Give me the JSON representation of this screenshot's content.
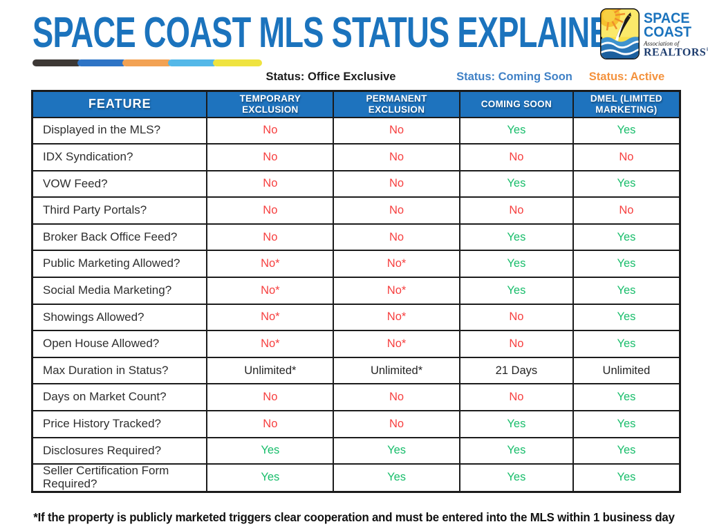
{
  "header": {
    "title": "SPACE COAST MLS STATUS EXPLAINER",
    "logo": {
      "word1": "SPACE",
      "word2": "COAST",
      "tagline": "Association of",
      "word3": "REALTORS",
      "reg_mark": "®",
      "badge_icon": "sun-rocket-waves-icon"
    }
  },
  "divider_colors": [
    "#3d3835",
    "#2e74c5",
    "#f2a254",
    "#54b8e8",
    "#efe340"
  ],
  "status_labels": [
    {
      "text": "Status: Office Exclusive",
      "color": "#1c1c1c"
    },
    {
      "text": "Status: Coming Soon",
      "color": "#4081c6"
    },
    {
      "text": "Status: Active",
      "color": "#f4923d"
    }
  ],
  "table": {
    "columns": [
      "FEATURE",
      "TEMPORARY EXCLUSION",
      "PERMANENT EXCLUSION",
      "COMING SOON",
      "DMEL (LIMITED MARKETING)"
    ],
    "rows": [
      {
        "feature": "Displayed in the MLS?",
        "values": [
          "No",
          "No",
          "Yes",
          "Yes"
        ]
      },
      {
        "feature": "IDX Syndication?",
        "values": [
          "No",
          "No",
          "No",
          "No"
        ]
      },
      {
        "feature": "VOW Feed?",
        "values": [
          "No",
          "No",
          "Yes",
          "Yes"
        ]
      },
      {
        "feature": "Third Party Portals?",
        "values": [
          "No",
          "No",
          "No",
          "No"
        ]
      },
      {
        "feature": "Broker Back Office Feed?",
        "values": [
          "No",
          "No",
          "Yes",
          "Yes"
        ]
      },
      {
        "feature": "Public Marketing Allowed?",
        "values": [
          "No*",
          "No*",
          "Yes",
          "Yes"
        ]
      },
      {
        "feature": "Social Media Marketing?",
        "values": [
          "No*",
          "No*",
          "Yes",
          "Yes"
        ]
      },
      {
        "feature": "Showings Allowed?",
        "values": [
          "No*",
          "No*",
          "No",
          "Yes"
        ]
      },
      {
        "feature": "Open House Allowed?",
        "values": [
          "No*",
          "No*",
          "No",
          "Yes"
        ]
      },
      {
        "feature": "Max Duration in Status?",
        "values": [
          "Unlimited*",
          "Unlimited*",
          "21 Days",
          "Unlimited"
        ]
      },
      {
        "feature": "Days on Market Count?",
        "values": [
          "No",
          "No",
          "No",
          "Yes"
        ]
      },
      {
        "feature": "Price History Tracked?",
        "values": [
          "No",
          "No",
          "Yes",
          "Yes"
        ]
      },
      {
        "feature": "Disclosures Required?",
        "values": [
          "Yes",
          "Yes",
          "Yes",
          "Yes"
        ]
      },
      {
        "feature": "Seller Certification Form Required?",
        "values": [
          "Yes",
          "Yes",
          "Yes",
          "Yes"
        ]
      }
    ]
  },
  "colors": {
    "title_blue": "#1b73bd",
    "header_blue": "#1e73be",
    "yes_green": "#17bd6a",
    "no_red": "#f63e3e"
  },
  "footnote": "*If the property is publicly marketed triggers clear cooperation and must be entered into the MLS within 1 business day"
}
